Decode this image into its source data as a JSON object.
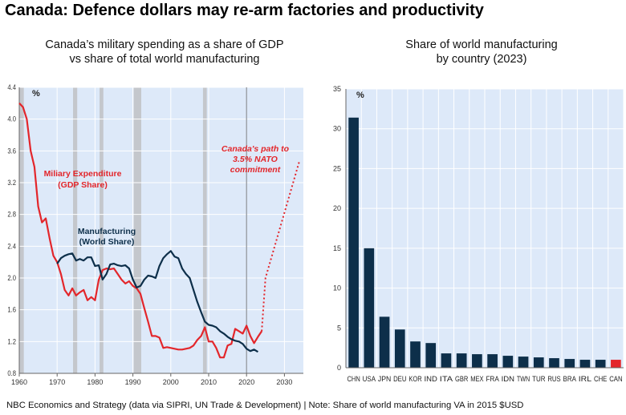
{
  "title": "Canada: Defence dollars may re-arm factories and productivity",
  "footer": "NBC Economics and Strategy (data via SIPRI, UN Trade & Development) | Note: Share of world manufacturing VA in 2015 $USD",
  "chart_data": [
    {
      "type": "line",
      "title_line1": "Canada’s military spending as a share of GDP",
      "title_line2": "vs share of total world manufacturing",
      "unit_label": "%",
      "xlim": [
        1960,
        2035
      ],
      "ylim": [
        0.8,
        4.4
      ],
      "xticks": [
        1960,
        1970,
        1980,
        1990,
        2000,
        2010,
        2020,
        2030
      ],
      "yticks": [
        "0.8",
        "1.2",
        "1.6",
        "2.0",
        "2.4",
        "2.8",
        "3.2",
        "3.6",
        "4.0",
        "4.4"
      ],
      "grid": true,
      "recession_bands": [
        [
          1960,
          1961.2
        ],
        [
          1974.2,
          1975.3
        ],
        [
          1981.2,
          1982.2
        ],
        [
          1990.2,
          1992.2
        ],
        [
          2008.5,
          2009.5
        ]
      ],
      "vertical_marker": 2020,
      "series": [
        {
          "name": "Miliary Expenditure (GDP Share)",
          "label_line1": "Miliary Expenditure",
          "label_line2": "(GDP Share)",
          "color": "#e3262b",
          "x": [
            1960,
            1961,
            1962,
            1963,
            1964,
            1965,
            1966,
            1967,
            1968,
            1969,
            1970,
            1971,
            1972,
            1973,
            1974,
            1975,
            1976,
            1977,
            1978,
            1979,
            1980,
            1981,
            1982,
            1983,
            1984,
            1985,
            1986,
            1987,
            1988,
            1989,
            1990,
            1991,
            1992,
            1993,
            1994,
            1995,
            1996,
            1997,
            1998,
            1999,
            2000,
            2001,
            2002,
            2003,
            2004,
            2005,
            2006,
            2007,
            2008,
            2009,
            2010,
            2011,
            2012,
            2013,
            2014,
            2015,
            2016,
            2017,
            2018,
            2019,
            2020,
            2021,
            2022,
            2023,
            2024
          ],
          "y": [
            4.2,
            4.15,
            4.0,
            3.6,
            3.4,
            2.9,
            2.7,
            2.75,
            2.5,
            2.28,
            2.2,
            2.05,
            1.85,
            1.78,
            1.87,
            1.78,
            1.82,
            1.85,
            1.72,
            1.76,
            1.72,
            1.98,
            2.1,
            2.12,
            2.11,
            2.12,
            2.05,
            1.98,
            1.93,
            1.96,
            1.9,
            1.87,
            1.8,
            1.62,
            1.45,
            1.27,
            1.27,
            1.25,
            1.12,
            1.13,
            1.12,
            1.11,
            1.1,
            1.1,
            1.11,
            1.12,
            1.15,
            1.22,
            1.27,
            1.38,
            1.2,
            1.2,
            1.12,
            1.0,
            1.0,
            1.15,
            1.17,
            1.36,
            1.33,
            1.3,
            1.4,
            1.27,
            1.18,
            1.26,
            1.33
          ]
        },
        {
          "name": "Manufacturing (World Share)",
          "label_line1": "Manufacturing",
          "label_line2": "(World Share)",
          "color": "#0d2f4a",
          "x": [
            1970,
            1971,
            1972,
            1973,
            1974,
            1975,
            1976,
            1977,
            1978,
            1979,
            1980,
            1981,
            1982,
            1983,
            1984,
            1985,
            1986,
            1987,
            1988,
            1989,
            1990,
            1991,
            1992,
            1993,
            1994,
            1995,
            1996,
            1997,
            1998,
            1999,
            2000,
            2001,
            2002,
            2003,
            2004,
            2005,
            2006,
            2007,
            2008,
            2009,
            2010,
            2011,
            2012,
            2013,
            2014,
            2015,
            2016,
            2017,
            2018,
            2019,
            2020,
            2021,
            2022,
            2023
          ],
          "y": [
            2.18,
            2.25,
            2.28,
            2.3,
            2.31,
            2.22,
            2.24,
            2.22,
            2.26,
            2.26,
            2.15,
            2.16,
            1.98,
            2.05,
            2.17,
            2.18,
            2.16,
            2.15,
            2.16,
            2.12,
            1.98,
            1.88,
            1.9,
            1.98,
            2.03,
            2.02,
            2.0,
            2.15,
            2.25,
            2.3,
            2.34,
            2.27,
            2.25,
            2.12,
            2.05,
            2.0,
            1.85,
            1.7,
            1.57,
            1.45,
            1.41,
            1.4,
            1.38,
            1.33,
            1.3,
            1.26,
            1.23,
            1.21,
            1.2,
            1.17,
            1.11,
            1.08,
            1.1,
            1.07
          ]
        },
        {
          "name": "Canada's path to 3.5% NATO commitment",
          "label_line1": "Canada's path to",
          "label_line2": "3.5% NATO",
          "label_line3": "commitment",
          "color": "#e3262b",
          "style": "dotted",
          "x": [
            2024,
            2025,
            2034
          ],
          "y": [
            1.33,
            2.0,
            3.48
          ]
        }
      ]
    },
    {
      "type": "bar",
      "title_line1": "Share of world manufacturing",
      "title_line2": "by country (2023)",
      "unit_label": "%",
      "ylim": [
        0,
        35
      ],
      "yticks": [
        "0",
        "5",
        "10",
        "15",
        "20",
        "25",
        "30",
        "35"
      ],
      "grid": true,
      "categories": [
        "CHN",
        "USA",
        "JPN",
        "DEU",
        "KOR",
        "IND",
        "ITA",
        "GBR",
        "MEX",
        "FRA",
        "IDN",
        "TWN",
        "TUR",
        "RUS",
        "BRA",
        "IRL",
        "CHE",
        "CAN"
      ],
      "values": [
        31.4,
        15.0,
        6.4,
        4.8,
        3.3,
        3.1,
        1.8,
        1.8,
        1.7,
        1.7,
        1.5,
        1.4,
        1.3,
        1.2,
        1.1,
        1.0,
        1.0,
        1.0
      ],
      "bar_color": "#0d2f4a",
      "highlight": {
        "category": "CAN",
        "color": "#e3262b"
      }
    }
  ]
}
